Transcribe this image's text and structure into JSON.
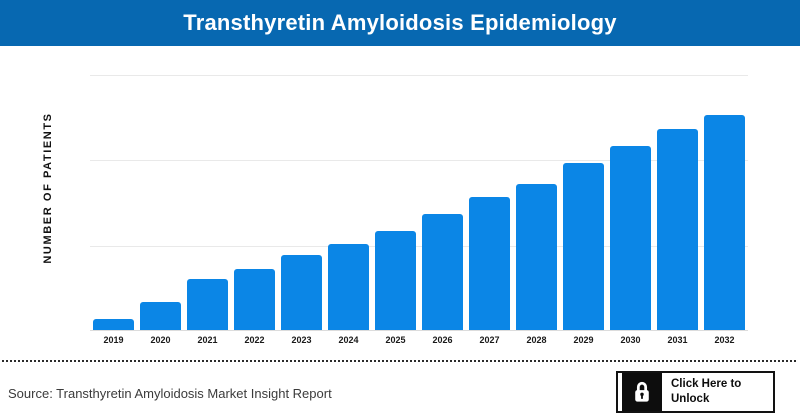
{
  "header": {
    "title": "Transthyretin Amyloidosis Epidemiology",
    "bg_color": "#0768b1",
    "text_color": "#ffffff"
  },
  "chart_data": {
    "type": "bar",
    "title": "Transthyretin Amyloidosis Epidemiology",
    "xlabel": "",
    "ylabel": "NUMBER OF PATIENTS",
    "categories": [
      "2019",
      "2020",
      "2021",
      "2022",
      "2023",
      "2024",
      "2025",
      "2026",
      "2027",
      "2028",
      "2029",
      "2030",
      "2031",
      "2032"
    ],
    "values_percent_of_max": [
      4.9,
      12.8,
      23.7,
      28.3,
      34.6,
      39.7,
      45.9,
      53.8,
      61.7,
      68.0,
      77.7,
      85.4,
      93.3,
      100
    ],
    "y_axis_tick_labels_visible": false,
    "ylim_note": "y-axis shows no numeric ticks; values estimated as percent of 2032 bar",
    "grid": "horizontal",
    "gridline_count": 3,
    "legend": "none",
    "bar_color": "#0b86e6",
    "gridline_color": "#e9e9e9"
  },
  "footer": {
    "source_text": "Source: Transthyretin Amyloidosis Market Insight Report",
    "unlock_button": {
      "label_line1": "Click Here to",
      "label_line2": "Unlock",
      "icon": "lock-icon",
      "border_color": "#121212",
      "icon_bg_color": "#0d0d0d"
    }
  }
}
